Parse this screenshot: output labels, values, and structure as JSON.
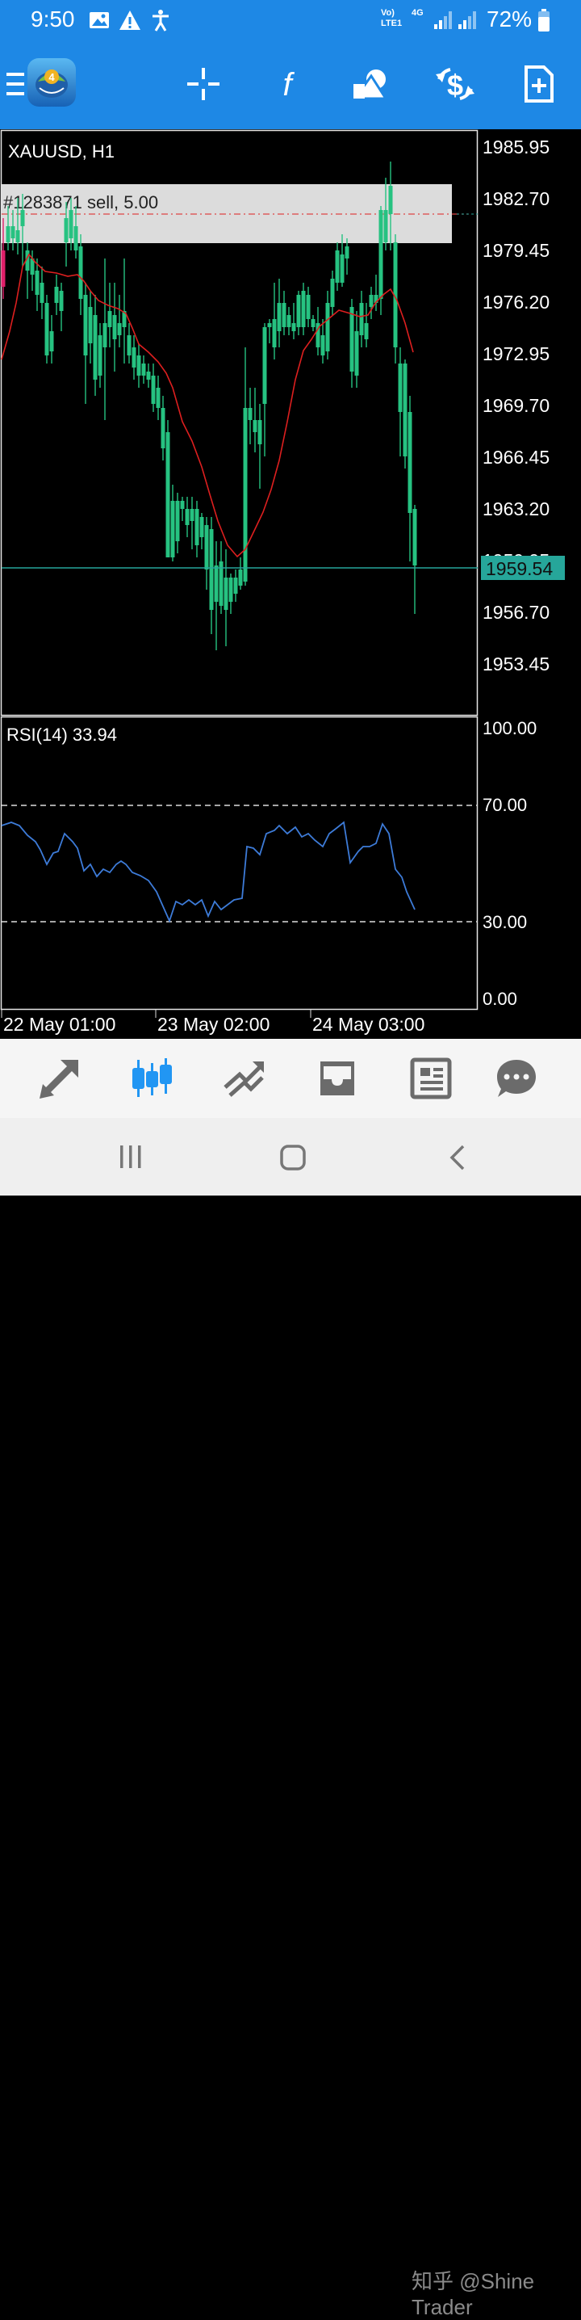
{
  "status": {
    "time": "9:50",
    "network_line1": "Vo)",
    "network_line2": "LTE1",
    "network_type": "4G",
    "battery_text": "72%"
  },
  "toolbar": {
    "icons": [
      "menu-icon",
      "mt4-logo-icon",
      "crosshair-icon",
      "indicators-icon",
      "objects-icon",
      "timeframe-icon",
      "new-order-icon"
    ]
  },
  "chart": {
    "symbol_label": "XAUUSD, H1",
    "order_label": "#1283871 sell, 5.00",
    "current_price": "1959.54",
    "price_ticks": [
      "1985.95",
      "1982.70",
      "1979.45",
      "1976.20",
      "1972.95",
      "1969.70",
      "1966.45",
      "1963.20",
      "1959.95",
      "1956.70",
      "1953.45"
    ],
    "time_labels": [
      "22 May 01:00",
      "23 May 02:00",
      "24 May 03:00"
    ],
    "colors": {
      "bull": "#26c281",
      "bear": "#e0206a",
      "ma": "#dd1f1f",
      "bid_line": "#26a69a",
      "rsi": "#3d7bd8",
      "order_zone": "#dcdcdc"
    }
  },
  "rsi": {
    "label": "RSI(14) 33.94",
    "ticks": [
      "100.00",
      "70.00",
      "30.00",
      "0.00"
    ]
  },
  "bottom_nav": {
    "items": [
      "quotes-icon",
      "chart-icon",
      "trade-icon",
      "history-icon",
      "news-icon",
      "chat-icon"
    ],
    "active": "chart-icon"
  },
  "watermark": "知乎 @Shine Trader"
}
